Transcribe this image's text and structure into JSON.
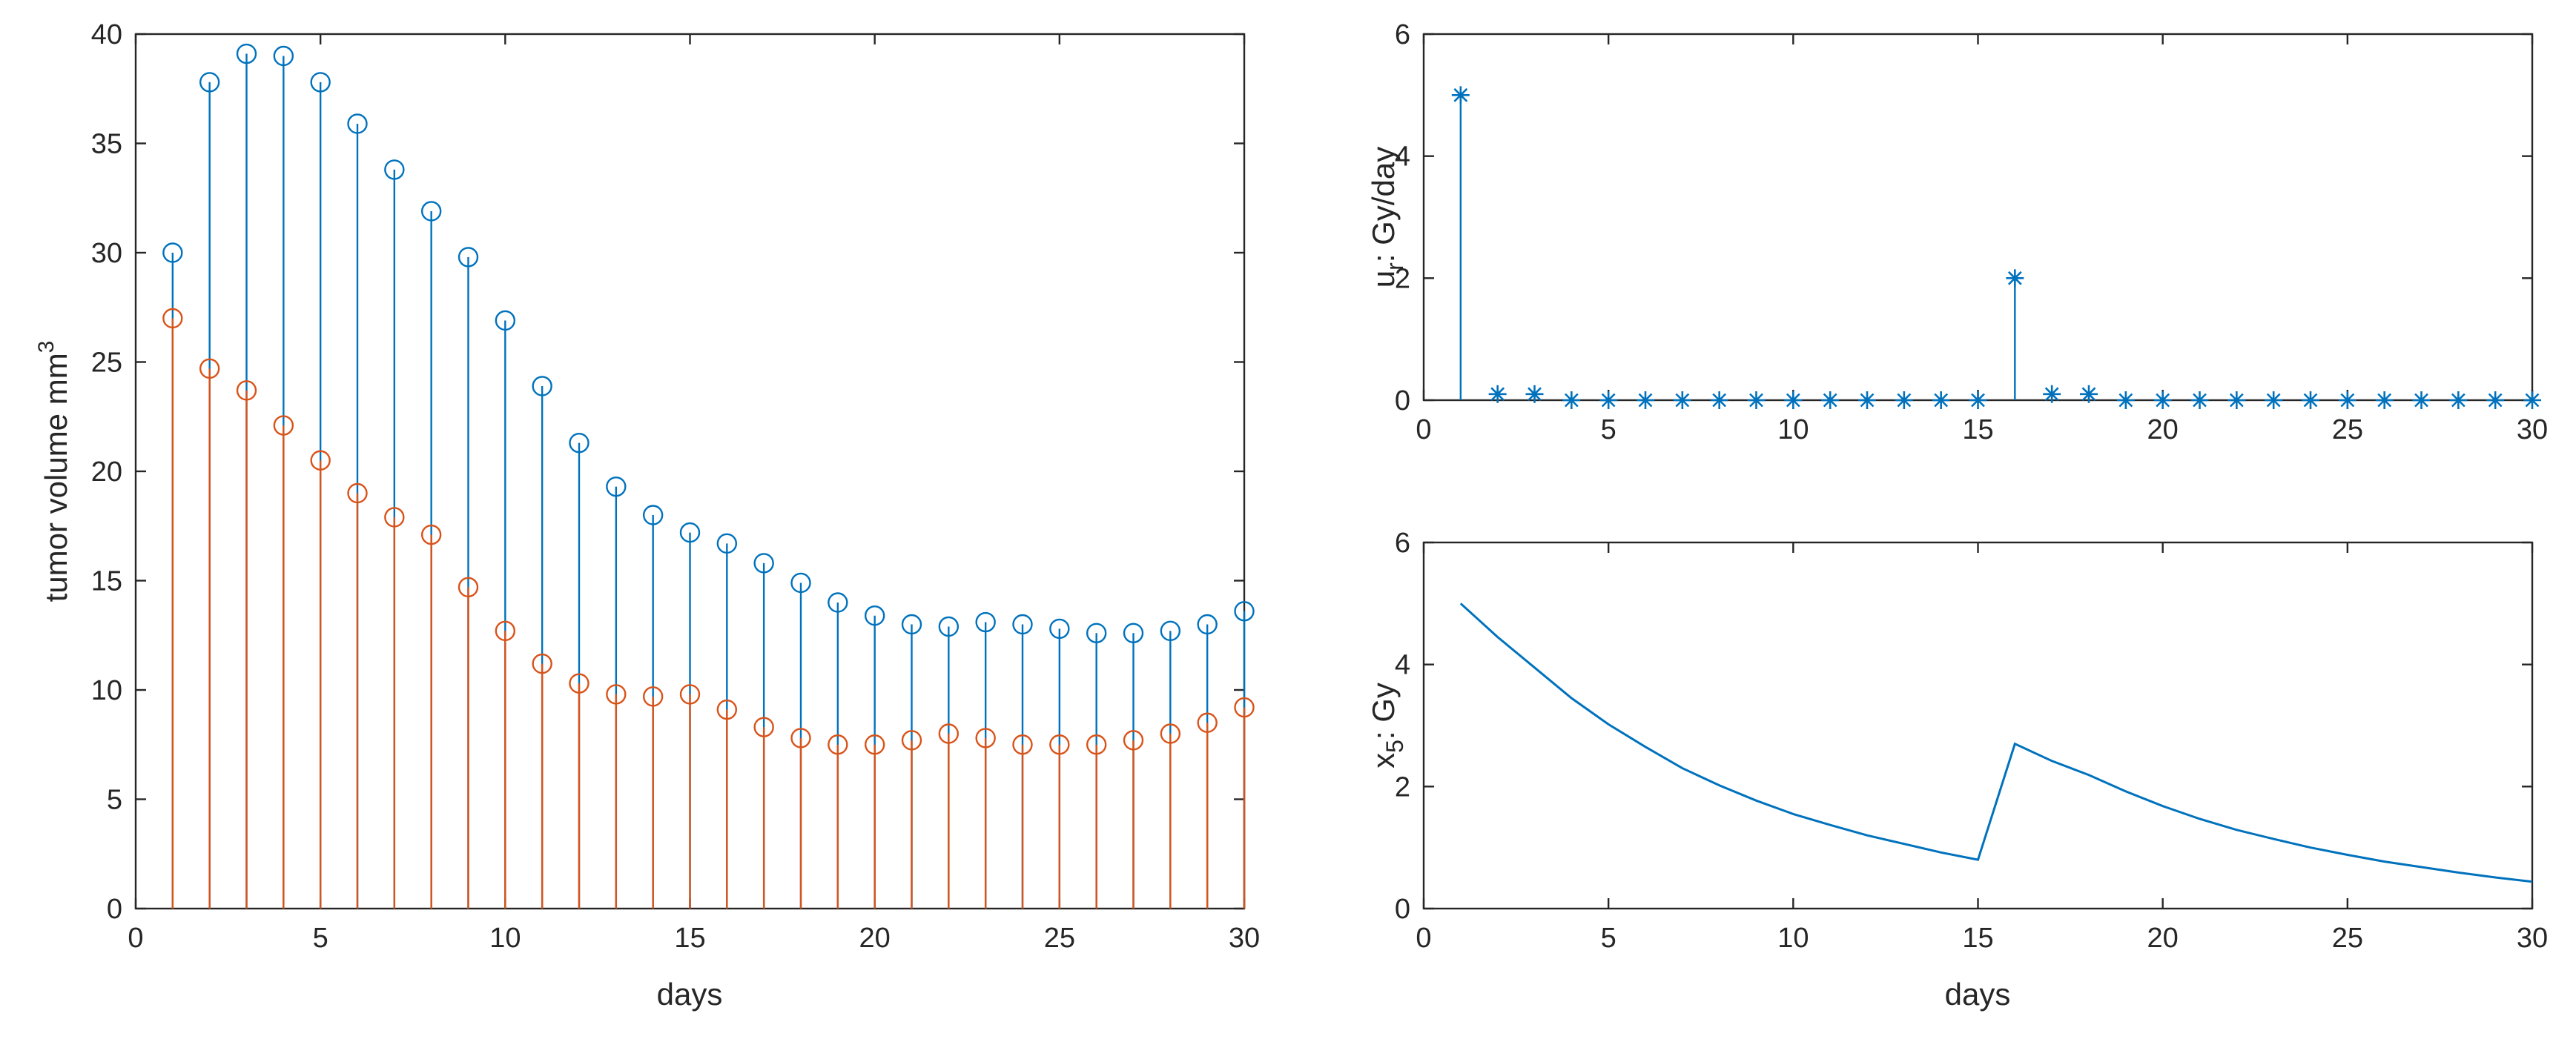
{
  "colors": {
    "blue": "#0072BD",
    "orange": "#D95319",
    "axis": "#262626"
  },
  "chart_data": [
    {
      "type": "stem",
      "title": "",
      "xlabel": "days",
      "ylabel": "tumor volume mm",
      "ylabel_sup": "3",
      "xlim": [
        0,
        30
      ],
      "ylim": [
        0,
        40
      ],
      "xticks": [
        0,
        5,
        10,
        15,
        20,
        25,
        30
      ],
      "yticks": [
        0,
        5,
        10,
        15,
        20,
        25,
        30,
        35,
        40
      ],
      "x": [
        1,
        2,
        3,
        4,
        5,
        6,
        7,
        8,
        9,
        10,
        11,
        12,
        13,
        14,
        15,
        16,
        17,
        18,
        19,
        20,
        21,
        22,
        23,
        24,
        25,
        26,
        27,
        28,
        29,
        30
      ],
      "series": [
        {
          "name": "series-1",
          "color": "blue",
          "marker": "circle",
          "values": [
            30.0,
            37.8,
            39.1,
            39.0,
            37.8,
            35.9,
            33.8,
            31.9,
            29.8,
            26.9,
            23.9,
            21.3,
            19.3,
            18.0,
            17.2,
            16.7,
            15.8,
            14.9,
            14.0,
            13.4,
            13.0,
            12.9,
            13.1,
            13.0,
            12.8,
            12.6,
            12.6,
            12.7,
            13.0,
            13.6
          ]
        },
        {
          "name": "series-2",
          "color": "orange",
          "marker": "circle",
          "values": [
            27.0,
            24.7,
            23.7,
            22.1,
            20.5,
            19.0,
            17.9,
            17.1,
            14.7,
            12.7,
            11.2,
            10.3,
            9.8,
            9.7,
            9.8,
            9.1,
            8.3,
            7.8,
            7.5,
            7.5,
            7.7,
            8.0,
            7.8,
            7.5,
            7.5,
            7.5,
            7.7,
            8.0,
            8.5,
            9.2
          ]
        }
      ]
    },
    {
      "type": "stem",
      "title": "",
      "xlabel": "",
      "ylabel_main": "u",
      "ylabel_sub": "r",
      "ylabel_rest": ": Gy/day",
      "xlim": [
        0,
        30
      ],
      "ylim": [
        0,
        6
      ],
      "xticks": [
        0,
        5,
        10,
        15,
        20,
        25,
        30
      ],
      "yticks": [
        0,
        2,
        4,
        6
      ],
      "x": [
        1,
        2,
        3,
        4,
        5,
        6,
        7,
        8,
        9,
        10,
        11,
        12,
        13,
        14,
        15,
        16,
        17,
        18,
        19,
        20,
        21,
        22,
        23,
        24,
        25,
        26,
        27,
        28,
        29,
        30
      ],
      "series": [
        {
          "name": "u_r",
          "color": "blue",
          "marker": "asterisk",
          "values": [
            5.0,
            0.1,
            0.1,
            0,
            0,
            0,
            0,
            0,
            0,
            0,
            0,
            0,
            0,
            0,
            0,
            2.0,
            0.1,
            0.1,
            0,
            0,
            0,
            0,
            0,
            0,
            0,
            0,
            0,
            0,
            0,
            0
          ]
        }
      ]
    },
    {
      "type": "line",
      "title": "",
      "xlabel": "days",
      "ylabel_main": "x",
      "ylabel_sub": "5",
      "ylabel_rest": ": Gy",
      "xlim": [
        0,
        30
      ],
      "ylim": [
        0,
        6
      ],
      "xticks": [
        0,
        5,
        10,
        15,
        20,
        25,
        30
      ],
      "yticks": [
        0,
        2,
        4,
        6
      ],
      "x": [
        1,
        2,
        3,
        4,
        5,
        6,
        7,
        8,
        9,
        10,
        11,
        12,
        13,
        14,
        15,
        16,
        17,
        18,
        19,
        20,
        21,
        22,
        23,
        24,
        25,
        26,
        27,
        28,
        29,
        30
      ],
      "series": [
        {
          "name": "x_5",
          "color": "blue",
          "values": [
            5.0,
            4.45,
            3.95,
            3.45,
            3.02,
            2.65,
            2.3,
            2.02,
            1.77,
            1.55,
            1.37,
            1.2,
            1.06,
            0.92,
            0.8,
            2.7,
            2.42,
            2.19,
            1.92,
            1.68,
            1.47,
            1.29,
            1.14,
            1.0,
            0.88,
            0.77,
            0.68,
            0.59,
            0.51,
            0.44
          ]
        }
      ]
    }
  ]
}
